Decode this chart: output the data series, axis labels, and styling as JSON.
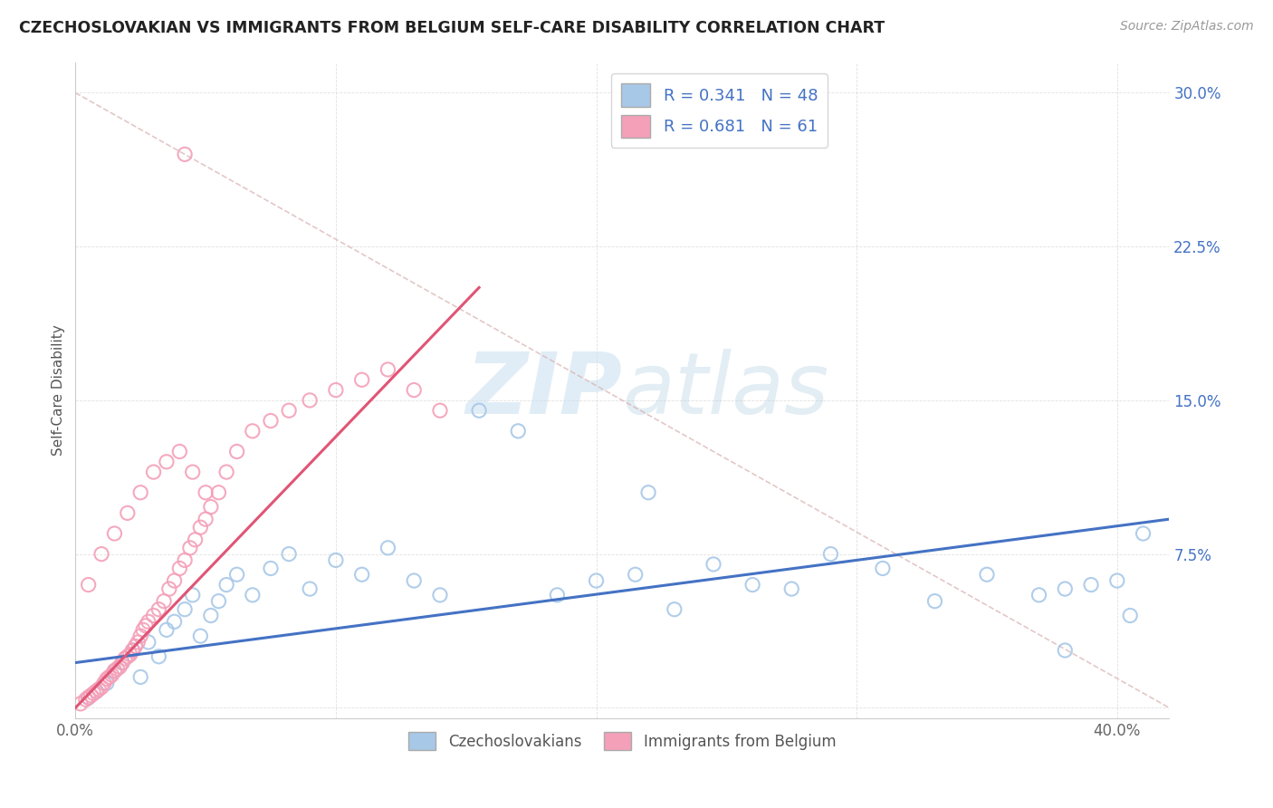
{
  "title": "CZECHOSLOVAKIAN VS IMMIGRANTS FROM BELGIUM SELF-CARE DISABILITY CORRELATION CHART",
  "source": "Source: ZipAtlas.com",
  "ylabel": "Self-Care Disability",
  "xlim": [
    0.0,
    0.42
  ],
  "ylim": [
    -0.005,
    0.315
  ],
  "xtick_positions": [
    0.0,
    0.1,
    0.2,
    0.3,
    0.4
  ],
  "ytick_positions": [
    0.0,
    0.075,
    0.15,
    0.225,
    0.3
  ],
  "xticklabels": [
    "0.0%",
    "",
    "",
    "",
    "40.0%"
  ],
  "yticklabels": [
    "",
    "7.5%",
    "15.0%",
    "22.5%",
    "30.0%"
  ],
  "blue_R": 0.341,
  "blue_N": 48,
  "pink_R": 0.681,
  "pink_N": 61,
  "blue_color": "#a8c8e8",
  "pink_color": "#f4a0b8",
  "blue_line_color": "#4472c4",
  "pink_line_color": "#e05575",
  "ref_line_color": "#d8b0b0",
  "watermark_color": "#ddeef8",
  "background_color": "#ffffff",
  "legend_label_blue": "Czechoslovakians",
  "legend_label_pink": "Immigrants from Belgium",
  "blue_line_x": [
    0.0,
    0.42
  ],
  "blue_line_y": [
    0.022,
    0.092
  ],
  "pink_line_x": [
    0.0,
    0.155
  ],
  "pink_line_y": [
    0.0,
    0.205
  ],
  "ref_line_x": [
    0.0,
    0.42
  ],
  "ref_line_y": [
    0.3,
    0.0
  ],
  "blue_x": [
    0.005,
    0.008,
    0.012,
    0.015,
    0.018,
    0.022,
    0.025,
    0.028,
    0.032,
    0.035,
    0.038,
    0.042,
    0.045,
    0.048,
    0.052,
    0.055,
    0.058,
    0.062,
    0.068,
    0.075,
    0.082,
    0.09,
    0.1,
    0.11,
    0.12,
    0.13,
    0.14,
    0.155,
    0.17,
    0.185,
    0.2,
    0.215,
    0.23,
    0.245,
    0.26,
    0.275,
    0.29,
    0.31,
    0.33,
    0.35,
    0.37,
    0.38,
    0.39,
    0.4,
    0.405,
    0.41,
    0.38,
    0.22
  ],
  "blue_y": [
    0.005,
    0.008,
    0.012,
    0.018,
    0.022,
    0.028,
    0.015,
    0.032,
    0.025,
    0.038,
    0.042,
    0.048,
    0.055,
    0.035,
    0.045,
    0.052,
    0.06,
    0.065,
    0.055,
    0.068,
    0.075,
    0.058,
    0.072,
    0.065,
    0.078,
    0.062,
    0.055,
    0.145,
    0.135,
    0.055,
    0.062,
    0.065,
    0.048,
    0.07,
    0.06,
    0.058,
    0.075,
    0.068,
    0.052,
    0.065,
    0.055,
    0.058,
    0.06,
    0.062,
    0.045,
    0.085,
    0.028,
    0.105
  ],
  "pink_x": [
    0.002,
    0.004,
    0.005,
    0.006,
    0.007,
    0.008,
    0.009,
    0.01,
    0.011,
    0.012,
    0.013,
    0.014,
    0.015,
    0.016,
    0.017,
    0.018,
    0.019,
    0.02,
    0.021,
    0.022,
    0.023,
    0.024,
    0.025,
    0.026,
    0.027,
    0.028,
    0.03,
    0.032,
    0.034,
    0.036,
    0.038,
    0.04,
    0.042,
    0.044,
    0.046,
    0.048,
    0.05,
    0.052,
    0.055,
    0.058,
    0.062,
    0.068,
    0.075,
    0.082,
    0.09,
    0.1,
    0.11,
    0.12,
    0.13,
    0.14,
    0.005,
    0.01,
    0.015,
    0.02,
    0.025,
    0.03,
    0.035,
    0.04,
    0.045,
    0.05,
    0.042
  ],
  "pink_y": [
    0.002,
    0.004,
    0.005,
    0.006,
    0.007,
    0.008,
    0.009,
    0.01,
    0.012,
    0.014,
    0.015,
    0.016,
    0.018,
    0.019,
    0.02,
    0.022,
    0.024,
    0.025,
    0.026,
    0.028,
    0.03,
    0.032,
    0.035,
    0.038,
    0.04,
    0.042,
    0.045,
    0.048,
    0.052,
    0.058,
    0.062,
    0.068,
    0.072,
    0.078,
    0.082,
    0.088,
    0.092,
    0.098,
    0.105,
    0.115,
    0.125,
    0.135,
    0.14,
    0.145,
    0.15,
    0.155,
    0.16,
    0.165,
    0.155,
    0.145,
    0.06,
    0.075,
    0.085,
    0.095,
    0.105,
    0.115,
    0.12,
    0.125,
    0.115,
    0.105,
    0.27
  ]
}
